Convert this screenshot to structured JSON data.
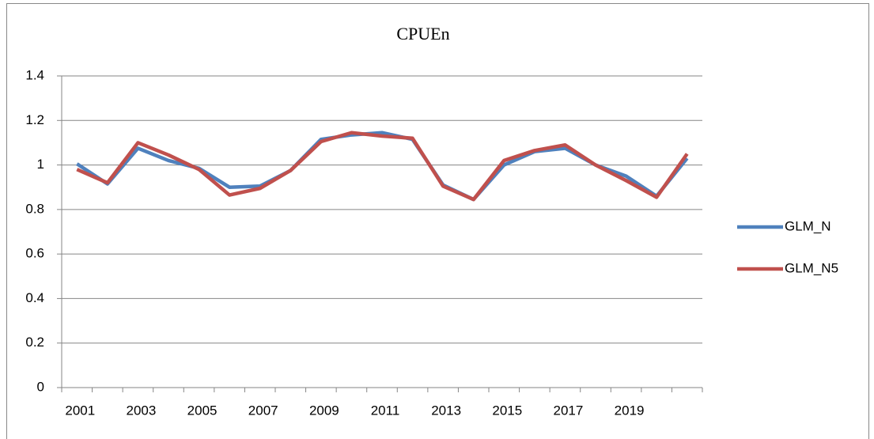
{
  "chart_data": {
    "type": "line",
    "title": "CPUEn",
    "categories": [
      "2001",
      null,
      "2003",
      null,
      "2005",
      null,
      "2007",
      null,
      "2009",
      null,
      "2011",
      null,
      "2013",
      null,
      "2015",
      null,
      "2017",
      null,
      "2019",
      null,
      null
    ],
    "series": [
      {
        "name": "GLM_N",
        "color": "#4f81bd",
        "values": [
          1.005,
          0.915,
          1.075,
          1.02,
          0.985,
          0.9,
          0.905,
          0.975,
          1.115,
          1.135,
          1.145,
          1.115,
          0.91,
          0.845,
          1.0,
          1.06,
          1.075,
          1.0,
          0.95,
          0.86,
          1.03
        ]
      },
      {
        "name": "GLM_N5",
        "color": "#c0504d",
        "values": [
          0.98,
          0.92,
          1.1,
          1.045,
          0.98,
          0.865,
          0.895,
          0.975,
          1.105,
          1.145,
          1.13,
          1.12,
          0.905,
          0.845,
          1.02,
          1.065,
          1.09,
          1.0,
          0.93,
          0.855,
          1.05
        ]
      }
    ],
    "ylim": [
      0,
      1.4
    ],
    "yticks": [
      0,
      0.2,
      0.4,
      0.6,
      0.8,
      1,
      1.2,
      1.4
    ],
    "grid": true,
    "legend": "right"
  }
}
